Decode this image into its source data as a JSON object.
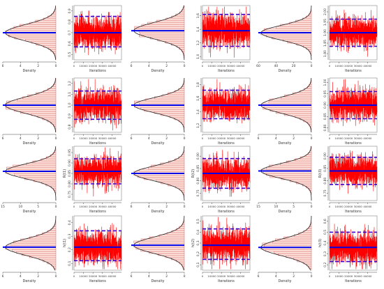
{
  "figure": {
    "background": "#ffffff",
    "colors": {
      "trace": "#ff0000",
      "trace_line": "#b20000",
      "mean_line": "#0000e6",
      "quantile_line": "#3b00c4",
      "histogram_stroke": "#c83232",
      "histogram_fill": "#ffe8e2",
      "density_curve": "#222222",
      "axis": "#444444"
    },
    "x_label_density": "Density",
    "x_label_iterations": "Iterations",
    "iteration_ticks": [
      "0",
      "10000",
      "20000",
      "30000",
      "40000"
    ]
  },
  "chart_data": [
    {
      "type": "histogram+trace",
      "row": 1,
      "col": 1,
      "y_label": "",
      "density_ticks": [
        "6",
        "4",
        "2",
        "0"
      ],
      "y_ticks": [
        "0.5",
        "0.6",
        "0.7",
        "0.8",
        "0.9"
      ],
      "ylim": [
        0.45,
        0.95
      ],
      "mean": 0.7,
      "sd": 0.075,
      "q_low": 0.57,
      "q_high": 0.85
    },
    {
      "type": "histogram+trace",
      "row": 1,
      "col": 2,
      "y_label": "",
      "density_ticks": [
        "6",
        "4",
        "2",
        "0"
      ],
      "y_ticks": [
        "1.0",
        "1.2",
        "1.4",
        "1.6"
      ],
      "ylim": [
        0.95,
        1.75
      ],
      "mean": 1.38,
      "sd": 0.12,
      "q_low": 1.15,
      "q_high": 1.62
    },
    {
      "type": "histogram+trace",
      "row": 1,
      "col": 3,
      "y_label": "",
      "density_ticks": [
        "60",
        "40",
        "20",
        "0"
      ],
      "y_ticks": [
        "1.80",
        "1.85",
        "1.90",
        "1.95",
        "2.00"
      ],
      "ylim": [
        1.77,
        2.03
      ],
      "mean": 1.9,
      "sd": 0.035,
      "q_low": 1.835,
      "q_high": 1.965
    },
    {
      "type": "histogram+trace",
      "row": 2,
      "col": 1,
      "y_label": "",
      "density_ticks": [
        "6",
        "4",
        "2",
        "0"
      ],
      "y_ticks": [
        "0.8",
        "0.9",
        "1.0",
        "1.1",
        "1.2"
      ],
      "ylim": [
        0.75,
        1.25
      ],
      "mean": 1.0,
      "sd": 0.075,
      "q_low": 0.87,
      "q_high": 1.13
    },
    {
      "type": "histogram+trace",
      "row": 2,
      "col": 2,
      "y_label": "",
      "density_ticks": [
        "6",
        "4",
        "2",
        "0"
      ],
      "y_ticks": [
        "1.2",
        "1.4",
        "1.6",
        "1.8"
      ],
      "ylim": [
        1.1,
        1.9
      ],
      "mean": 1.5,
      "sd": 0.11,
      "q_low": 1.3,
      "q_high": 1.72
    },
    {
      "type": "histogram+trace",
      "row": 2,
      "col": 3,
      "y_label": "",
      "density_ticks": [
        "6",
        "4",
        "2",
        "0"
      ],
      "y_ticks": [
        "0.80",
        "0.85",
        "0.90",
        "0.95",
        "1.00"
      ],
      "ylim": [
        0.78,
        1.02
      ],
      "mean": 0.9,
      "sd": 0.035,
      "q_low": 0.84,
      "q_high": 0.96
    },
    {
      "type": "histogram+trace",
      "row": 3,
      "col": 1,
      "y_label": "R(t1)",
      "density_ticks": [
        "15",
        "10",
        "5",
        "0"
      ],
      "y_ticks": [
        "0.75",
        "0.80",
        "0.85",
        "0.90",
        "0.95"
      ],
      "ylim": [
        0.72,
        0.98
      ],
      "mean": 0.86,
      "sd": 0.035,
      "q_low": 0.8,
      "q_high": 0.92
    },
    {
      "type": "histogram+trace",
      "row": 3,
      "col": 2,
      "y_label": "R(t2)",
      "density_ticks": [
        "6",
        "4",
        "2",
        "0"
      ],
      "y_ticks": [
        "0.75",
        "0.80",
        "0.85",
        "0.90"
      ],
      "ylim": [
        0.72,
        0.94
      ],
      "mean": 0.83,
      "sd": 0.03,
      "q_low": 0.77,
      "q_high": 0.89
    },
    {
      "type": "histogram+trace",
      "row": 3,
      "col": 3,
      "y_label": "R(t3)",
      "density_ticks": [
        "15",
        "10",
        "5",
        "0"
      ],
      "y_ticks": [
        "0.75",
        "0.80",
        "0.85",
        "0.90"
      ],
      "ylim": [
        0.72,
        0.94
      ],
      "mean": 0.84,
      "sd": 0.03,
      "q_low": 0.785,
      "q_high": 0.895
    },
    {
      "type": "histogram+trace",
      "row": 4,
      "col": 1,
      "y_label": "h(t1)",
      "density_ticks": [
        "6",
        "4",
        "2",
        "0"
      ],
      "y_ticks": [
        "0.1",
        "0.2",
        "0.3",
        "0.4"
      ],
      "ylim": [
        0.05,
        0.45
      ],
      "mean": 0.22,
      "sd": 0.06,
      "q_low": 0.12,
      "q_high": 0.34
    },
    {
      "type": "histogram+trace",
      "row": 4,
      "col": 2,
      "y_label": "h(t2)",
      "density_ticks": [
        "6",
        "4",
        "2",
        "0"
      ],
      "y_ticks": [
        "0.1",
        "0.2",
        "0.3",
        "0.4",
        "0.5"
      ],
      "ylim": [
        0.05,
        0.55
      ],
      "mean": 0.28,
      "sd": 0.075,
      "q_low": 0.15,
      "q_high": 0.43
    },
    {
      "type": "histogram+trace",
      "row": 4,
      "col": 3,
      "y_label": "h(t3)",
      "density_ticks": [
        "6",
        "4",
        "2",
        "0"
      ],
      "y_ticks": [
        "0.2",
        "0.3",
        "0.4",
        "0.5",
        "0.6"
      ],
      "ylim": [
        0.15,
        0.65
      ],
      "mean": 0.36,
      "sd": 0.075,
      "q_low": 0.23,
      "q_high": 0.5
    }
  ]
}
